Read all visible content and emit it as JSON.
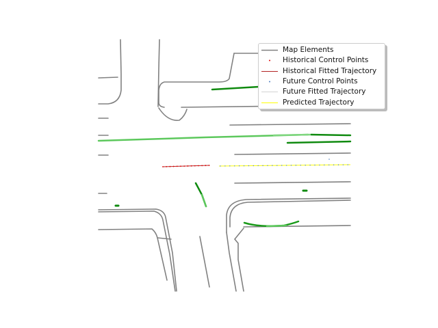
{
  "colors": {
    "map": "#808080",
    "hist_points": "#e00000",
    "hist_line": "#b22222",
    "future_points": "#4f7fbf",
    "future_line": "#d3d3d3",
    "predicted": "#ffff00",
    "lane_dark": "#0f8a0f",
    "lane_light": "#5cc85c"
  },
  "legend": {
    "placement": "top-right",
    "items": [
      {
        "label": "Map Elements",
        "kind": "line",
        "color": "#808080"
      },
      {
        "label": "Historical Control Points",
        "kind": "dot",
        "color": "#e00000"
      },
      {
        "label": "Historical Fitted Trajectory",
        "kind": "line",
        "color": "#b22222"
      },
      {
        "label": "Future Control Points",
        "kind": "dot",
        "color": "#4f7fbf"
      },
      {
        "label": "Future Fitted Trajectory",
        "kind": "line",
        "color": "#d3d3d3"
      },
      {
        "label": "Predicted Trajectory",
        "kind": "line",
        "color": "#ffff00"
      }
    ]
  }
}
